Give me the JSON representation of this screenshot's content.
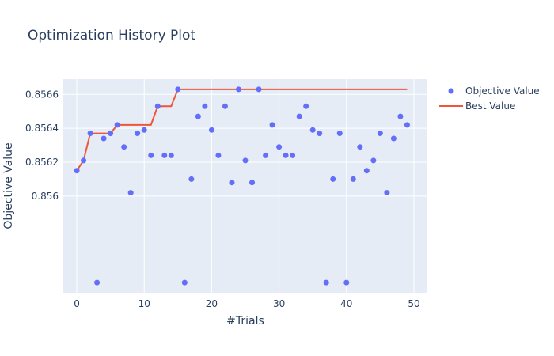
{
  "chart_data": {
    "type": "scatter",
    "title": "Optimization History Plot",
    "xlabel": "#Trials",
    "ylabel": "Objective Value",
    "xlim": [
      -2,
      52
    ],
    "ylim": [
      0.85543,
      0.85669
    ],
    "xticks": [
      0,
      10,
      20,
      30,
      40,
      50
    ],
    "yticks": [
      0.856,
      0.8562,
      0.8564,
      0.8566
    ],
    "ytick_labels": [
      "0.856",
      "0.8562",
      "0.8564",
      "0.8566"
    ],
    "series": [
      {
        "name": "Objective Value",
        "kind": "markers",
        "color": "#636efa",
        "x": [
          0,
          1,
          2,
          3,
          4,
          5,
          6,
          7,
          8,
          9,
          10,
          11,
          12,
          13,
          14,
          15,
          16,
          17,
          18,
          19,
          20,
          21,
          22,
          23,
          24,
          25,
          26,
          27,
          28,
          29,
          30,
          31,
          32,
          33,
          34,
          35,
          36,
          37,
          38,
          39,
          40,
          41,
          42,
          43,
          44,
          45,
          46,
          47,
          48,
          49
        ],
        "y": [
          0.85615,
          0.85621,
          0.85637,
          0.85549,
          0.85634,
          0.85637,
          0.85642,
          0.85629,
          0.85602,
          0.85637,
          0.85639,
          0.85624,
          0.85653,
          0.85624,
          0.85624,
          0.85663,
          0.85549,
          0.8561,
          0.85647,
          0.85653,
          0.85639,
          0.85624,
          0.85653,
          0.85608,
          0.85663,
          0.85621,
          0.85608,
          0.85663,
          0.85624,
          0.85642,
          0.85629,
          0.85624,
          0.85624,
          0.85647,
          0.85653,
          0.85639,
          0.85637,
          0.85549,
          0.8561,
          0.85637,
          0.85549,
          0.8561,
          0.85629,
          0.85615,
          0.85621,
          0.85637,
          0.85602,
          0.85634,
          0.85647,
          0.85642
        ]
      },
      {
        "name": "Best Value",
        "kind": "line",
        "color": "#ef553b",
        "x": [
          0,
          1,
          2,
          3,
          4,
          5,
          6,
          7,
          8,
          9,
          10,
          11,
          12,
          13,
          14,
          15,
          16,
          17,
          18,
          19,
          20,
          21,
          22,
          23,
          24,
          25,
          26,
          27,
          28,
          29,
          30,
          31,
          32,
          33,
          34,
          35,
          36,
          37,
          38,
          39,
          40,
          41,
          42,
          43,
          44,
          45,
          46,
          47,
          48,
          49
        ],
        "y": [
          0.85615,
          0.85621,
          0.85637,
          0.85637,
          0.85637,
          0.85637,
          0.85642,
          0.85642,
          0.85642,
          0.85642,
          0.85642,
          0.85642,
          0.85653,
          0.85653,
          0.85653,
          0.85663,
          0.85663,
          0.85663,
          0.85663,
          0.85663,
          0.85663,
          0.85663,
          0.85663,
          0.85663,
          0.85663,
          0.85663,
          0.85663,
          0.85663,
          0.85663,
          0.85663,
          0.85663,
          0.85663,
          0.85663,
          0.85663,
          0.85663,
          0.85663,
          0.85663,
          0.85663,
          0.85663,
          0.85663,
          0.85663,
          0.85663,
          0.85663,
          0.85663,
          0.85663,
          0.85663,
          0.85663,
          0.85663,
          0.85663,
          0.85663
        ]
      }
    ],
    "legend": {
      "placement": "top-right-outside",
      "items": [
        "Objective Value",
        "Best Value"
      ]
    },
    "colors": {
      "plot_background": "#e5ecf6",
      "grid": "#ffffff",
      "text": "#2a3f5f"
    }
  }
}
